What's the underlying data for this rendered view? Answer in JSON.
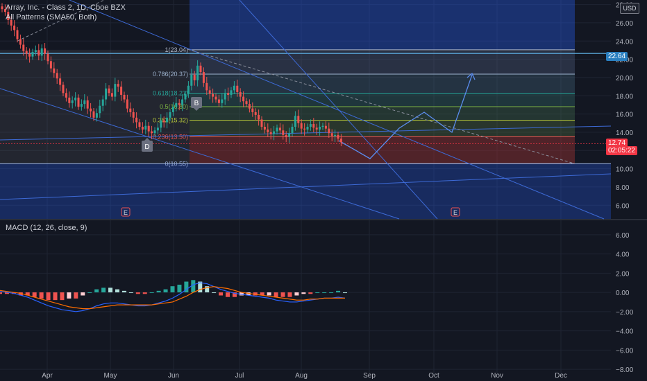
{
  "header": {
    "title": "Array, Inc. - Class 2, 1D, Cboe BZX",
    "indicator": "All Patterns (SMA50, Both)",
    "currency": "USD"
  },
  "macd": {
    "label": "MACD (12, 26, close, 9)"
  },
  "price_tags": {
    "top_level": "22.64",
    "last_price": "12.74",
    "countdown": "02:05:22"
  },
  "markers": {
    "pattern_b": "B",
    "pattern_d": "D",
    "earnings_1": "E",
    "earnings_2": "E"
  },
  "colors": {
    "background": "#131722",
    "up": "#26a69a",
    "down": "#ef5350",
    "blue_line": "#2962ff",
    "macd_line": "#2962ff",
    "signal_line": "#ff6d00"
  },
  "chart_data": [
    {
      "type": "candlestick",
      "title": "Array, Inc. - Class 2, 1D, Cboe BZX",
      "ylim": [
        4.5,
        28.5
      ],
      "y_ticks": [
        "28.00",
        "26.00",
        "24.00",
        "22.00",
        "20.00",
        "18.00",
        "16.00",
        "14.00",
        "12.00",
        "10.00",
        "8.00",
        "6.00"
      ],
      "x_ticks": [
        "Apr",
        "May",
        "Jun",
        "Jul",
        "Aug",
        "Sep",
        "Oct",
        "Nov",
        "Dec"
      ],
      "close_path": [
        27.5,
        27.2,
        26.3,
        25.7,
        25.2,
        24.2,
        23.6,
        22.9,
        22.6,
        22.3,
        22.8,
        23.0,
        22.4,
        23.2,
        22.6,
        21.8,
        21.0,
        20.5,
        19.9,
        19.2,
        18.3,
        17.8,
        17.2,
        17.5,
        17.8,
        16.8,
        17.1,
        17.5,
        16.6,
        16.3,
        15.6,
        16.1,
        16.9,
        17.6,
        18.8,
        18.3,
        17.9,
        19.3,
        19.0,
        18.1,
        17.6,
        16.6,
        16.2,
        15.6,
        15.1,
        14.6,
        14.3,
        14.7,
        14.1,
        13.9,
        14.2,
        14.5,
        15.3,
        15.1,
        15.6,
        16.2,
        16.8,
        17.2,
        17.0,
        17.6,
        18.2,
        19.1,
        20.3,
        19.7,
        21.3,
        20.6,
        19.4,
        18.6,
        18.2,
        17.9,
        17.6,
        17.2,
        17.6,
        18.3,
        18.1,
        18.6,
        19.1,
        18.4,
        17.9,
        17.4,
        17.1,
        16.6,
        16.2,
        15.9,
        15.4,
        14.6,
        14.3,
        14.0,
        13.8,
        14.1,
        14.5,
        14.2,
        13.7,
        13.5,
        13.9,
        14.6,
        15.8,
        15.0,
        14.4,
        14.3,
        14.6,
        14.9,
        14.5,
        14.3,
        14.6,
        14.7,
        14.4,
        13.9,
        13.6,
        13.7,
        13.3,
        12.9
      ],
      "fib_levels": [
        {
          "label": "1(23.04)",
          "value": 23.04
        },
        {
          "label": "0.786(20.37)",
          "value": 20.37
        },
        {
          "label": "0.618(18.27)",
          "value": 18.27
        },
        {
          "label": "0.5(16.80)",
          "value": 16.8
        },
        {
          "label": "0.382(15.32)",
          "value": 15.32
        },
        {
          "label": "0.236(13.50)",
          "value": 13.5
        },
        {
          "label": "0(10.55)",
          "value": 10.55
        }
      ],
      "last_price": 12.74
    },
    {
      "type": "macd",
      "title": "MACD (12, 26, close, 9)",
      "ylim": [
        -8.5,
        7.5
      ],
      "y_ticks": [
        "6.00",
        "4.00",
        "2.00",
        "0.00",
        "−2.00",
        "−4.00",
        "−6.00",
        "−8.00"
      ],
      "macd_path": [
        0.1,
        0.0,
        -0.1,
        -0.3,
        -0.5,
        -0.8,
        -1.1,
        -1.4,
        -1.6,
        -1.8,
        -1.9,
        -2.0,
        -1.9,
        -1.7,
        -1.4,
        -1.2,
        -1.1,
        -1.1,
        -1.2,
        -1.3,
        -1.4,
        -1.4,
        -1.3,
        -1.1,
        -0.9,
        -0.6,
        -0.2,
        0.3,
        0.8,
        1.0,
        0.9,
        0.6,
        0.3,
        0.1,
        -0.1,
        -0.2,
        -0.3,
        -0.4,
        -0.5,
        -0.6,
        -0.8,
        -0.9,
        -1.0,
        -1.0,
        -0.9,
        -0.8,
        -0.7,
        -0.6,
        -0.6,
        -0.5,
        -0.6
      ],
      "signal_path": [
        0.2,
        0.1,
        0.0,
        -0.1,
        -0.3,
        -0.5,
        -0.7,
        -0.9,
        -1.1,
        -1.3,
        -1.5,
        -1.6,
        -1.7,
        -1.7,
        -1.6,
        -1.5,
        -1.4,
        -1.3,
        -1.3,
        -1.3,
        -1.3,
        -1.3,
        -1.3,
        -1.2,
        -1.1,
        -1.0,
        -0.7,
        -0.4,
        0.0,
        0.3,
        0.5,
        0.6,
        0.5,
        0.4,
        0.2,
        0.0,
        -0.1,
        -0.2,
        -0.3,
        -0.4,
        -0.5,
        -0.6,
        -0.7,
        -0.8,
        -0.8,
        -0.7,
        -0.7,
        -0.6,
        -0.6,
        -0.6,
        -0.6
      ]
    }
  ]
}
